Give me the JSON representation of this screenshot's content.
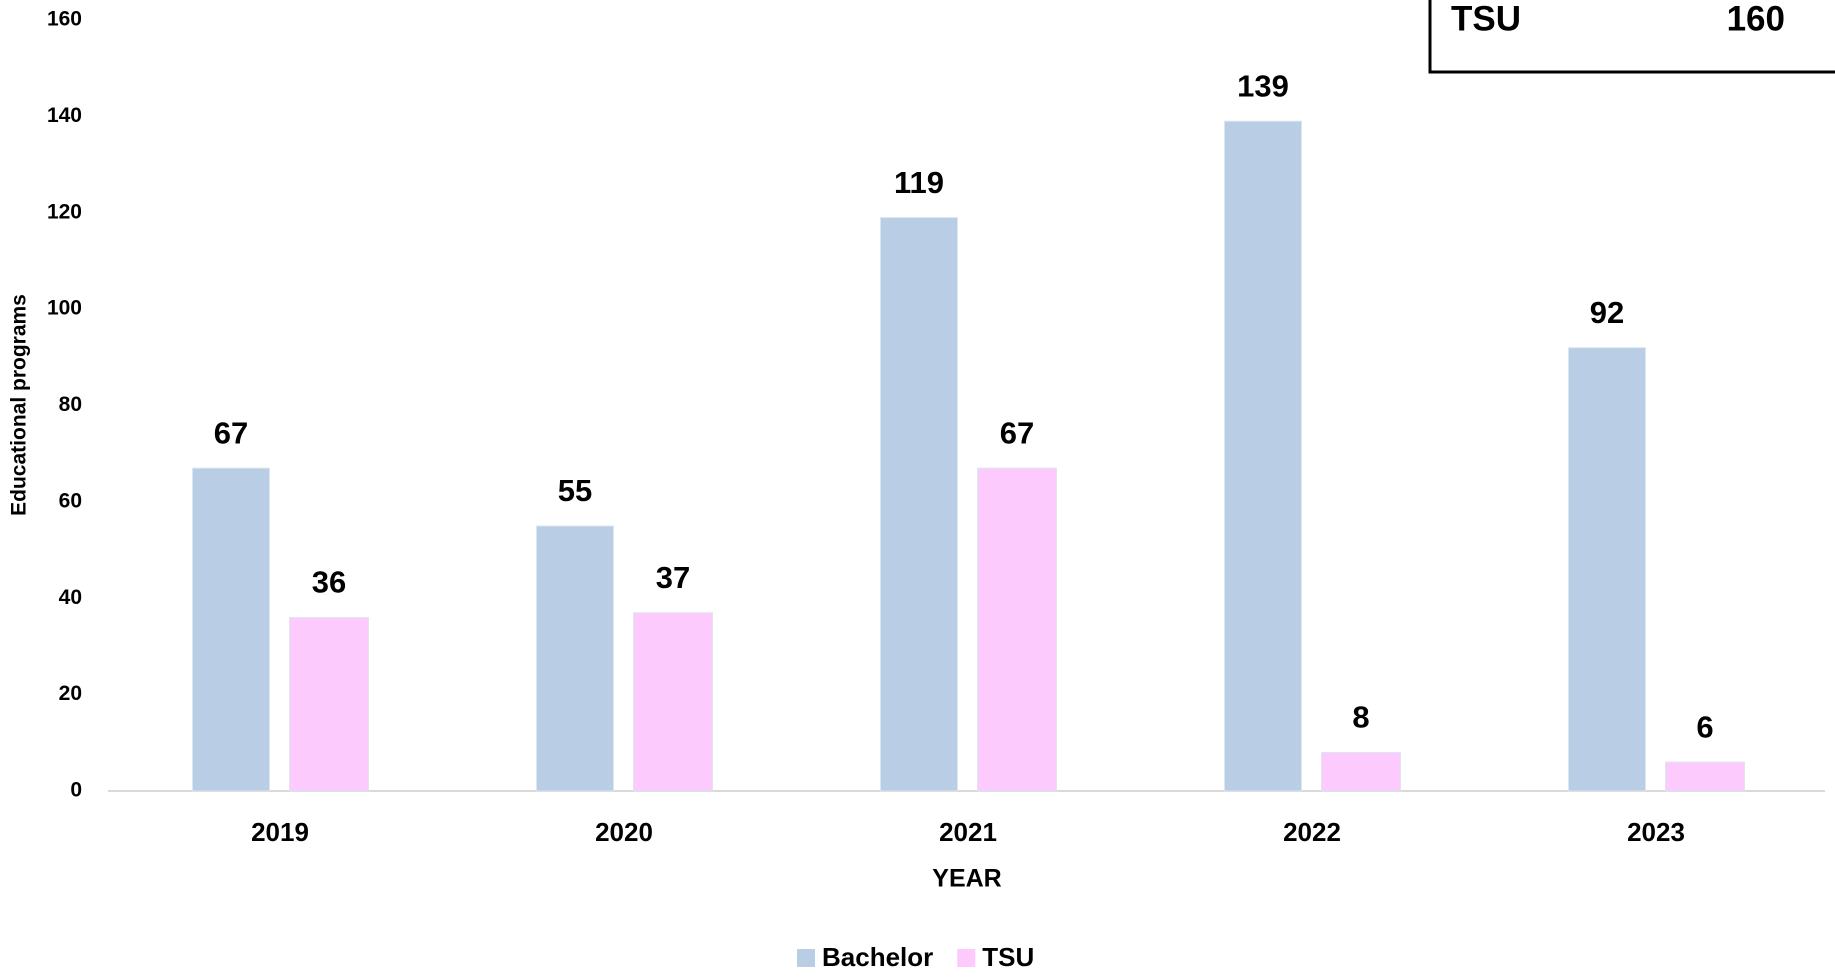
{
  "chart_data": {
    "type": "bar",
    "x_label": "YEAR",
    "y_label": "Educational programs",
    "categories": [
      "2019",
      "2020",
      "2021",
      "2022",
      "2023"
    ],
    "series": [
      {
        "name": "Bachelor",
        "color": "#b9cde5",
        "values": [
          67,
          55,
          119,
          139,
          92
        ]
      },
      {
        "name": "TSU",
        "color": "#fccafc",
        "values": [
          36,
          37,
          67,
          8,
          6
        ]
      }
    ],
    "ylim": [
      0,
      160
    ],
    "yticks": [
      0,
      20,
      40,
      60,
      80,
      100,
      120,
      140,
      160
    ],
    "grid": false,
    "legend": "bottom",
    "inset": {
      "label": "TSU",
      "value": 160
    }
  }
}
